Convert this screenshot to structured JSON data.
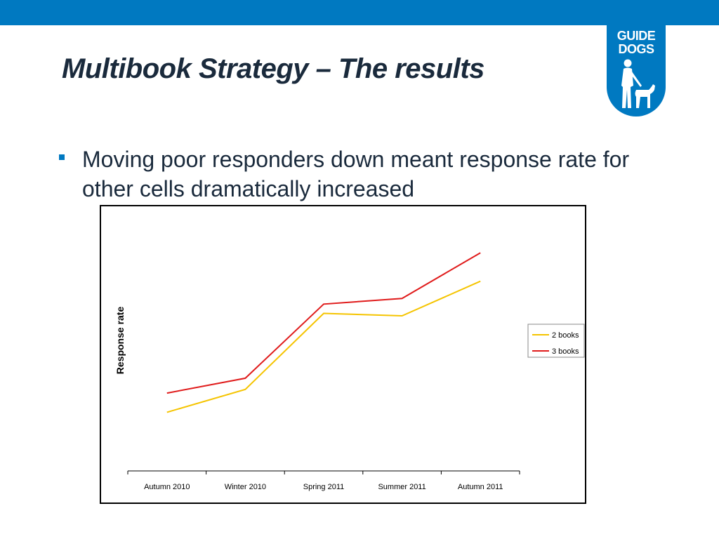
{
  "slide": {
    "title": "Multibook Strategy – The results",
    "bullet": "Moving poor responders down meant response rate for other cells dramatically increased"
  },
  "logo": {
    "line1": "GUIDE",
    "line2": "DOGS",
    "icon": "person-with-guide-dog-icon",
    "color": "#0079c1"
  },
  "colors": {
    "header_bar": "#0079c1",
    "bullet_marker": "#0079c1"
  },
  "chart_data": {
    "type": "line",
    "title": "",
    "ylabel": "Response rate",
    "xlabel": "",
    "categories": [
      "Autumn 2010",
      "Winter 2010",
      "Spring 2011",
      "Summer 2011",
      "Autumn 2011"
    ],
    "series": [
      {
        "name": "2 books",
        "color": "#f5c400",
        "values": [
          0.95,
          1.32,
          2.55,
          2.51,
          3.07
        ]
      },
      {
        "name": "3 books",
        "color": "#e01b1b",
        "values": [
          1.26,
          1.5,
          2.7,
          2.79,
          3.53
        ]
      }
    ],
    "ylim": [
      0,
      4.1
    ],
    "y_axis_visible": false,
    "grid": false,
    "legend": "right"
  }
}
